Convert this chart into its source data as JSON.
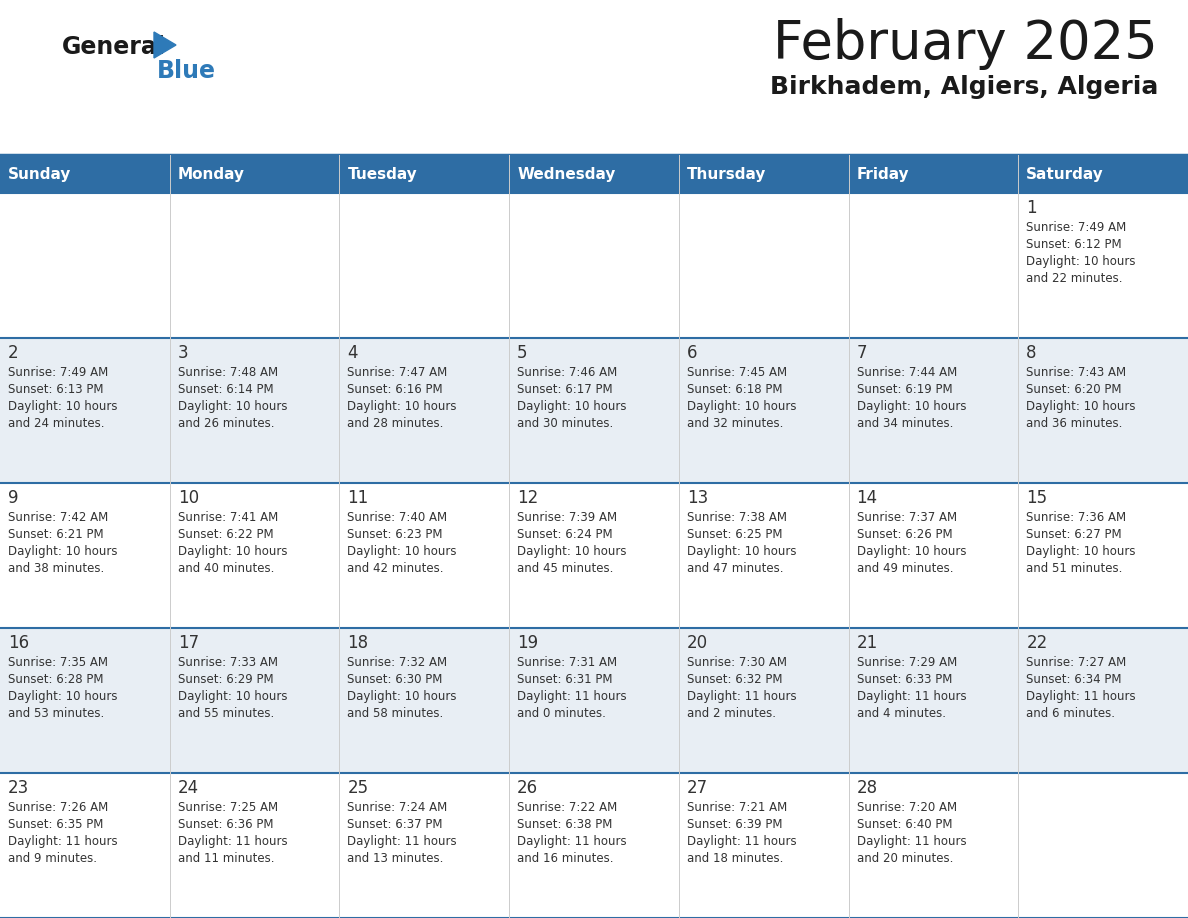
{
  "title": "February 2025",
  "subtitle": "Birkhadem, Algiers, Algeria",
  "header_bg": "#2E6DA4",
  "header_text_color": "#FFFFFF",
  "cell_bg_odd": "#FFFFFF",
  "cell_bg_even": "#E8EEF4",
  "border_color": "#2E6DA4",
  "text_color": "#333333",
  "days_of_week": [
    "Sunday",
    "Monday",
    "Tuesday",
    "Wednesday",
    "Thursday",
    "Friday",
    "Saturday"
  ],
  "calendar_data": [
    [
      null,
      null,
      null,
      null,
      null,
      null,
      {
        "day": "1",
        "sunrise": "7:49 AM",
        "sunset": "6:12 PM",
        "daylight_line1": "Daylight: 10 hours",
        "daylight_line2": "and 22 minutes."
      }
    ],
    [
      {
        "day": "2",
        "sunrise": "7:49 AM",
        "sunset": "6:13 PM",
        "daylight_line1": "Daylight: 10 hours",
        "daylight_line2": "and 24 minutes."
      },
      {
        "day": "3",
        "sunrise": "7:48 AM",
        "sunset": "6:14 PM",
        "daylight_line1": "Daylight: 10 hours",
        "daylight_line2": "and 26 minutes."
      },
      {
        "day": "4",
        "sunrise": "7:47 AM",
        "sunset": "6:16 PM",
        "daylight_line1": "Daylight: 10 hours",
        "daylight_line2": "and 28 minutes."
      },
      {
        "day": "5",
        "sunrise": "7:46 AM",
        "sunset": "6:17 PM",
        "daylight_line1": "Daylight: 10 hours",
        "daylight_line2": "and 30 minutes."
      },
      {
        "day": "6",
        "sunrise": "7:45 AM",
        "sunset": "6:18 PM",
        "daylight_line1": "Daylight: 10 hours",
        "daylight_line2": "and 32 minutes."
      },
      {
        "day": "7",
        "sunrise": "7:44 AM",
        "sunset": "6:19 PM",
        "daylight_line1": "Daylight: 10 hours",
        "daylight_line2": "and 34 minutes."
      },
      {
        "day": "8",
        "sunrise": "7:43 AM",
        "sunset": "6:20 PM",
        "daylight_line1": "Daylight: 10 hours",
        "daylight_line2": "and 36 minutes."
      }
    ],
    [
      {
        "day": "9",
        "sunrise": "7:42 AM",
        "sunset": "6:21 PM",
        "daylight_line1": "Daylight: 10 hours",
        "daylight_line2": "and 38 minutes."
      },
      {
        "day": "10",
        "sunrise": "7:41 AM",
        "sunset": "6:22 PM",
        "daylight_line1": "Daylight: 10 hours",
        "daylight_line2": "and 40 minutes."
      },
      {
        "day": "11",
        "sunrise": "7:40 AM",
        "sunset": "6:23 PM",
        "daylight_line1": "Daylight: 10 hours",
        "daylight_line2": "and 42 minutes."
      },
      {
        "day": "12",
        "sunrise": "7:39 AM",
        "sunset": "6:24 PM",
        "daylight_line1": "Daylight: 10 hours",
        "daylight_line2": "and 45 minutes."
      },
      {
        "day": "13",
        "sunrise": "7:38 AM",
        "sunset": "6:25 PM",
        "daylight_line1": "Daylight: 10 hours",
        "daylight_line2": "and 47 minutes."
      },
      {
        "day": "14",
        "sunrise": "7:37 AM",
        "sunset": "6:26 PM",
        "daylight_line1": "Daylight: 10 hours",
        "daylight_line2": "and 49 minutes."
      },
      {
        "day": "15",
        "sunrise": "7:36 AM",
        "sunset": "6:27 PM",
        "daylight_line1": "Daylight: 10 hours",
        "daylight_line2": "and 51 minutes."
      }
    ],
    [
      {
        "day": "16",
        "sunrise": "7:35 AM",
        "sunset": "6:28 PM",
        "daylight_line1": "Daylight: 10 hours",
        "daylight_line2": "and 53 minutes."
      },
      {
        "day": "17",
        "sunrise": "7:33 AM",
        "sunset": "6:29 PM",
        "daylight_line1": "Daylight: 10 hours",
        "daylight_line2": "and 55 minutes."
      },
      {
        "day": "18",
        "sunrise": "7:32 AM",
        "sunset": "6:30 PM",
        "daylight_line1": "Daylight: 10 hours",
        "daylight_line2": "and 58 minutes."
      },
      {
        "day": "19",
        "sunrise": "7:31 AM",
        "sunset": "6:31 PM",
        "daylight_line1": "Daylight: 11 hours",
        "daylight_line2": "and 0 minutes."
      },
      {
        "day": "20",
        "sunrise": "7:30 AM",
        "sunset": "6:32 PM",
        "daylight_line1": "Daylight: 11 hours",
        "daylight_line2": "and 2 minutes."
      },
      {
        "day": "21",
        "sunrise": "7:29 AM",
        "sunset": "6:33 PM",
        "daylight_line1": "Daylight: 11 hours",
        "daylight_line2": "and 4 minutes."
      },
      {
        "day": "22",
        "sunrise": "7:27 AM",
        "sunset": "6:34 PM",
        "daylight_line1": "Daylight: 11 hours",
        "daylight_line2": "and 6 minutes."
      }
    ],
    [
      {
        "day": "23",
        "sunrise": "7:26 AM",
        "sunset": "6:35 PM",
        "daylight_line1": "Daylight: 11 hours",
        "daylight_line2": "and 9 minutes."
      },
      {
        "day": "24",
        "sunrise": "7:25 AM",
        "sunset": "6:36 PM",
        "daylight_line1": "Daylight: 11 hours",
        "daylight_line2": "and 11 minutes."
      },
      {
        "day": "25",
        "sunrise": "7:24 AM",
        "sunset": "6:37 PM",
        "daylight_line1": "Daylight: 11 hours",
        "daylight_line2": "and 13 minutes."
      },
      {
        "day": "26",
        "sunrise": "7:22 AM",
        "sunset": "6:38 PM",
        "daylight_line1": "Daylight: 11 hours",
        "daylight_line2": "and 16 minutes."
      },
      {
        "day": "27",
        "sunrise": "7:21 AM",
        "sunset": "6:39 PM",
        "daylight_line1": "Daylight: 11 hours",
        "daylight_line2": "and 18 minutes."
      },
      {
        "day": "28",
        "sunrise": "7:20 AM",
        "sunset": "6:40 PM",
        "daylight_line1": "Daylight: 11 hours",
        "daylight_line2": "and 20 minutes."
      },
      null
    ]
  ]
}
